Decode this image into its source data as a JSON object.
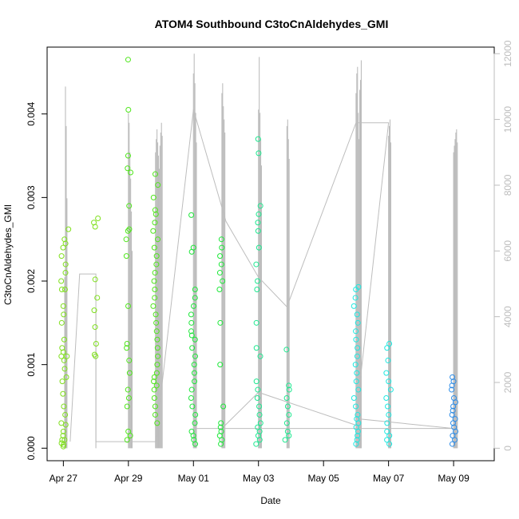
{
  "chart_data": {
    "type": "scatter",
    "title": "ATOM4 Southbound C3toCnAldehydes_GMI",
    "xlabel": "Date",
    "ylabel": "C3toCnAldehydes_GMI",
    "xlim": [
      "2016-04-26T12:00",
      "2016-05-10T06:00"
    ],
    "ylim": [
      -0.00015,
      0.0048
    ],
    "x_ticks": [
      {
        "date": "2016-04-27",
        "label": "Apr 27"
      },
      {
        "date": "2016-04-29",
        "label": "Apr 29"
      },
      {
        "date": "2016-05-01",
        "label": "May 01"
      },
      {
        "date": "2016-05-03",
        "label": "May 03"
      },
      {
        "date": "2016-05-05",
        "label": "May 05"
      },
      {
        "date": "2016-05-07",
        "label": "May 07"
      },
      {
        "date": "2016-05-09",
        "label": "May 09"
      }
    ],
    "y_ticks": [
      "0.000",
      "0.001",
      "0.002",
      "0.003",
      "0.004"
    ],
    "y2": {
      "color": "#bdbdbd",
      "ylim": [
        -380,
        12200
      ],
      "ticks": [
        "0",
        "2000",
        "4000",
        "6000",
        "8000",
        "10000",
        "12000"
      ],
      "profiles": [
        {
          "date": "2016-04-27 01:00",
          "altitudes": [
            5200,
            11000,
            9800,
            7600
          ]
        },
        {
          "date": "2016-04-28 00:00",
          "altitudes": [
            4200
          ]
        },
        {
          "date": "2016-04-29 00:00",
          "altitudes": [
            10200,
            9900,
            9000,
            8200,
            7200,
            6000
          ]
        },
        {
          "date": "2016-04-29 20:00",
          "altitudes": [
            9000,
            9400,
            9700,
            9300,
            8900,
            8500,
            9200,
            9600,
            9900,
            9500
          ]
        },
        {
          "date": "2016-05-01 00:00",
          "altitudes": [
            11400,
            12000,
            11100,
            10200,
            9300
          ]
        },
        {
          "date": "2016-05-01 21:00",
          "altitudes": [
            10800,
            11100,
            10400,
            10000,
            9600
          ]
        },
        {
          "date": "2016-05-03 00:00",
          "altitudes": [
            10300,
            11900,
            10200,
            9400,
            8600
          ]
        },
        {
          "date": "2016-05-03 21:00",
          "altitudes": [
            9800,
            10000,
            9400,
            8800
          ]
        },
        {
          "date": "2016-05-06 00:00",
          "altitudes": [
            10800,
            11400,
            11600,
            10200,
            9400,
            10900,
            11200,
            11800
          ]
        },
        {
          "date": "2016-05-07 00:00",
          "altitudes": [
            9500,
            9800,
            10000,
            9300
          ]
        },
        {
          "date": "2016-05-09 00:00",
          "altitudes": [
            9000,
            9200,
            9400,
            9600,
            9700,
            9300
          ]
        }
      ],
      "track": [
        {
          "date": "2016-04-27 05:00",
          "alt": 200
        },
        {
          "date": "2016-04-27 12:00",
          "alt": 5300
        },
        {
          "date": "2016-04-28 00:00",
          "alt": 5300
        },
        {
          "date": "2016-04-28 00:00",
          "alt": 200
        },
        {
          "date": "2016-04-29 00:00",
          "alt": 200
        },
        {
          "date": "2016-04-29 20:00",
          "alt": 200
        },
        {
          "date": "2016-05-01 00:00",
          "alt": 10300
        },
        {
          "date": "2016-05-02 00:00",
          "alt": 6900
        },
        {
          "date": "2016-05-03 00:00",
          "alt": 5200
        },
        {
          "date": "2016-05-03 21:00",
          "alt": 4300
        },
        {
          "date": "2016-05-06 00:00",
          "alt": 9900
        },
        {
          "date": "2016-05-07 00:00",
          "alt": 9900
        },
        {
          "date": "2016-05-06 00:00",
          "alt": 900
        },
        {
          "date": "2016-05-09 00:00",
          "alt": 600
        },
        {
          "date": "2016-05-01 00:00",
          "alt": 600
        },
        {
          "date": "2016-05-01 21:00",
          "alt": 600
        },
        {
          "date": "2016-05-03 00:00",
          "alt": 1700
        },
        {
          "date": "2016-05-06 00:00",
          "alt": 700
        }
      ]
    },
    "series": [
      {
        "color": "#7fe01c",
        "points": [
          {
            "x": "2016-04-27 00:00",
            "y": [
              2e-05,
              4e-05,
              6e-05,
              0.0001,
              0.00015,
              0.0002,
              0.0003,
              0.0004,
              0.0005,
              0.00065,
              0.0008,
              0.00095,
              0.00105,
              0.0011,
              0.00115,
              0.0012,
              0.0013,
              0.0015,
              0.0016,
              0.0017,
              0.0019,
              0.002,
              0.0021,
              0.0022,
              0.0023,
              0.0024,
              0.00245
            ]
          },
          {
            "x": "2016-04-27 02:00",
            "y": [
              0.0001,
              0.00028,
              0.00085,
              0.0011,
              0.0019,
              0.0025,
              0.00262
            ]
          },
          {
            "x": "2016-04-28 00:00",
            "y": [
              0.0011,
              0.00112,
              0.00125,
              0.00145,
              0.00165,
              0.0018,
              0.00202,
              0.00265,
              0.0027,
              0.00275
            ]
          }
        ]
      },
      {
        "color": "#4fe61c",
        "points": [
          {
            "x": "2016-04-29 00:00",
            "y": [
              0.0001,
              0.00015,
              0.0002,
              0.0005,
              0.0006,
              0.0007,
              0.0009,
              0.00105,
              0.0012,
              0.00125,
              0.0017,
              0.0023,
              0.0025,
              0.0026,
              0.00262,
              0.0029,
              0.0033,
              0.00335,
              0.0035,
              0.00405,
              0.00465
            ]
          },
          {
            "x": "2016-04-29 20:00",
            "y": [
              0.0003,
              0.0004,
              0.0005,
              0.0006,
              0.0007,
              0.00075,
              0.0008,
              0.00085,
              0.0009,
              0.001,
              0.0011,
              0.0012,
              0.0013,
              0.0014,
              0.0015,
              0.0016,
              0.0017,
              0.0018,
              0.0019,
              0.002,
              0.0021,
              0.0022,
              0.0023,
              0.0024,
              0.0025,
              0.0026,
              0.0027,
              0.0028,
              0.00285,
              0.003,
              0.00315,
              0.00328
            ]
          }
        ]
      },
      {
        "color": "#1ee83a",
        "points": [
          {
            "x": "2016-05-01 00:00",
            "y": [
              5e-05,
              0.0001,
              0.00015,
              0.0002,
              0.0003,
              0.0004,
              0.0005,
              0.0006,
              0.0007,
              0.0008,
              0.0009,
              0.001,
              0.0011,
              0.0012,
              0.0013,
              0.00135,
              0.0014,
              0.0015,
              0.0016,
              0.0017,
              0.0018,
              0.0019,
              0.00235,
              0.0024,
              0.00279
            ]
          },
          {
            "x": "2016-05-01 21:00",
            "y": [
              5e-05,
              0.0001,
              0.00015,
              0.0002,
              0.00025,
              0.0003,
              0.0005,
              0.001,
              0.0015,
              0.0019,
              0.002,
              0.0021,
              0.0022,
              0.0023,
              0.0024,
              0.0025
            ]
          }
        ]
      },
      {
        "color": "#1ee890",
        "points": [
          {
            "x": "2016-05-03 00:00",
            "y": [
              5e-05,
              0.0001,
              0.00015,
              0.0002,
              0.00025,
              0.0003,
              0.0004,
              0.0005,
              0.0006,
              0.0007,
              0.0008,
              0.0011,
              0.0012,
              0.0015,
              0.0019,
              0.002,
              0.0022,
              0.0024,
              0.0026,
              0.0027,
              0.0028,
              0.0029,
              0.00353,
              0.0037
            ]
          },
          {
            "x": "2016-05-03 21:00",
            "y": [
              0.0001,
              0.00015,
              0.0002,
              0.0003,
              0.0004,
              0.0005,
              0.0006,
              0.0007,
              0.00075,
              0.00118
            ]
          }
        ]
      },
      {
        "color": "#1ee8e0",
        "points": [
          {
            "x": "2016-05-06 00:00",
            "y": [
              5e-05,
              0.0001,
              0.00015,
              0.0002,
              0.00025,
              0.0003,
              0.00035,
              0.0004,
              0.0005,
              0.0006,
              0.0007,
              0.0008,
              0.0009,
              0.001,
              0.0011,
              0.0012,
              0.0013,
              0.0014,
              0.0015,
              0.0016,
              0.0017,
              0.0018,
              0.0019,
              0.00193
            ]
          },
          {
            "x": "2016-05-07 00:00",
            "y": [
              5e-05,
              0.0001,
              0.00015,
              0.0002,
              0.0003,
              0.0004,
              0.0005,
              0.0006,
              0.0007,
              0.0008,
              0.0009,
              0.00105,
              0.0012,
              0.00125
            ]
          }
        ]
      },
      {
        "color": "#2b8ce8",
        "points": [
          {
            "x": "2016-05-09 00:00",
            "y": [
              5e-05,
              0.0001,
              0.00015,
              0.0002,
              0.00025,
              0.0003,
              0.00035,
              0.0004,
              0.00045,
              0.0005,
              0.00055,
              0.0006,
              0.0007,
              0.00075,
              0.0008,
              0.00085
            ]
          }
        ]
      }
    ]
  }
}
